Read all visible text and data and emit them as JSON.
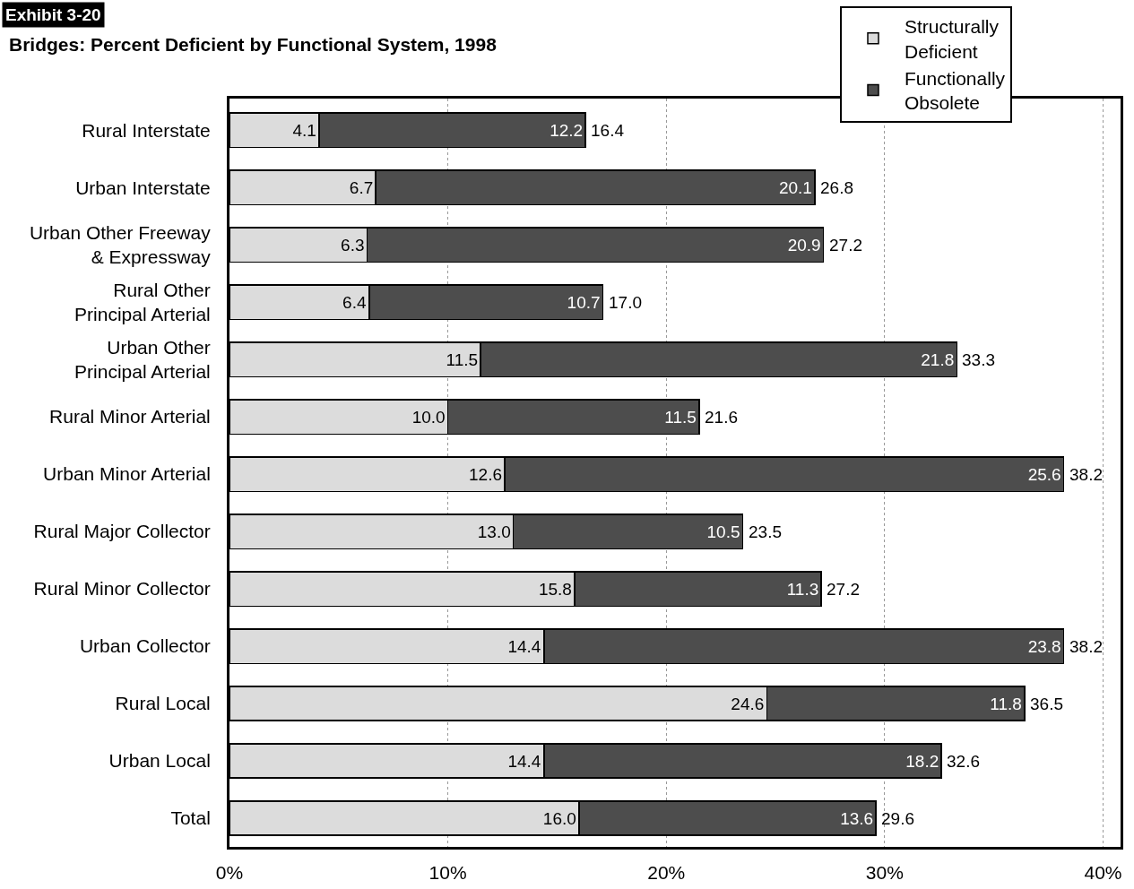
{
  "chart_data": {
    "type": "bar",
    "orientation": "horizontal",
    "stacked": true,
    "title": "Bridges: Percent Deficient by Functional System, 1998",
    "annotations": [
      "Exhibit 3-20"
    ],
    "categories": [
      "Rural Interstate",
      "Urban Interstate",
      "Urban Other Freeway\n& Expressway",
      "Rural Other\nPrincipal Arterial",
      "Urban Other\nPrincipal Arterial",
      "Rural Minor Arterial",
      "Urban Minor Arterial",
      "Rural Major Collector",
      "Rural Minor Collector",
      "Urban Collector",
      "Rural Local",
      "Urban Local",
      "Total"
    ],
    "series": [
      {
        "name": "Structurally\nDeficient",
        "color": "#dcdcdc",
        "values": [
          4.1,
          6.7,
          6.3,
          6.4,
          11.5,
          10.0,
          12.6,
          13.0,
          15.8,
          14.4,
          24.6,
          14.4,
          16.0
        ],
        "value_labels": [
          "4.1",
          "6.7",
          "6.3",
          "6.4",
          "11.5",
          "10.0",
          "12.6",
          "13.0",
          "15.8",
          "14.4",
          "24.6",
          "14.4",
          "16.0"
        ]
      },
      {
        "name": "Functionally\nObsolete",
        "color": "#4d4d4d",
        "values": [
          12.2,
          20.1,
          20.9,
          10.7,
          21.8,
          11.5,
          25.6,
          10.5,
          11.3,
          23.8,
          11.8,
          18.2,
          13.6
        ],
        "value_labels": [
          "12.2",
          "20.1",
          "20.9",
          "10.7",
          "21.8",
          "11.5",
          "25.6",
          "10.5",
          "11.3",
          "23.8",
          "11.8",
          "18.2",
          "13.6"
        ]
      }
    ],
    "totals": [
      "16.4",
      "26.8",
      "27.2",
      "17.0",
      "33.3",
      "21.6",
      "38.2",
      "23.5",
      "27.2",
      "38.2",
      "36.5",
      "32.6",
      "29.6"
    ],
    "xlim": [
      0,
      40.8
    ],
    "xticks": [
      {
        "value": 0,
        "label": "0%"
      },
      {
        "value": 10,
        "label": "10%"
      },
      {
        "value": 20,
        "label": "20%"
      },
      {
        "value": 30,
        "label": "30%"
      },
      {
        "value": 40,
        "label": "40%"
      }
    ],
    "grid": "x",
    "legend": "top right"
  }
}
